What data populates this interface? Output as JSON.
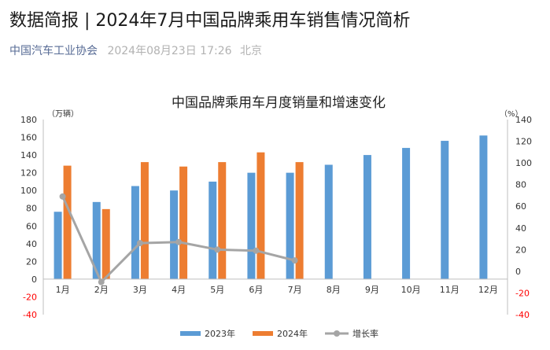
{
  "article": {
    "title": "数据简报 | 2024年7月中国品牌乘用车销售情况简析",
    "source": "中国汽车工业协会",
    "date": "2024年08月23日 17:26",
    "location": "北京"
  },
  "chart_data": {
    "type": "bar",
    "title": "中国品牌乘用车月度销量和增速变化",
    "left_unit": "（万辆）",
    "right_unit": "（%）",
    "categories": [
      "1月",
      "2月",
      "3月",
      "4月",
      "5月",
      "6月",
      "7月",
      "8月",
      "9月",
      "10月",
      "11月",
      "12月"
    ],
    "y_left": {
      "min": -40,
      "max": 180,
      "step": 20,
      "ticks": [
        "-40",
        "-20",
        "0",
        "20",
        "40",
        "60",
        "80",
        "100",
        "120",
        "140",
        "160",
        "180"
      ]
    },
    "y_right": {
      "min": -40,
      "max": 140,
      "step": 20,
      "ticks": [
        "-40",
        "-20",
        "0",
        "20",
        "40",
        "60",
        "80",
        "100",
        "120",
        "140"
      ]
    },
    "series": [
      {
        "name": "2023年",
        "kind": "bar",
        "axis": "left",
        "color": "#5b9bd5",
        "values": [
          76,
          87,
          105,
          100,
          110,
          120,
          120,
          129,
          140,
          148,
          156,
          162
        ]
      },
      {
        "name": "2024年",
        "kind": "bar",
        "axis": "left",
        "color": "#ed7d31",
        "values": [
          128,
          79,
          132,
          127,
          132,
          143,
          132,
          null,
          null,
          null,
          null,
          null
        ]
      },
      {
        "name": "增长率",
        "kind": "line",
        "axis": "right",
        "color": "#a5a5a5",
        "values": [
          69,
          -10,
          26,
          27,
          20,
          19,
          10,
          null,
          null,
          null,
          null,
          null
        ]
      }
    ],
    "negative_tick_color": "#ff0000",
    "grid": false,
    "legend_position": "bottom"
  }
}
